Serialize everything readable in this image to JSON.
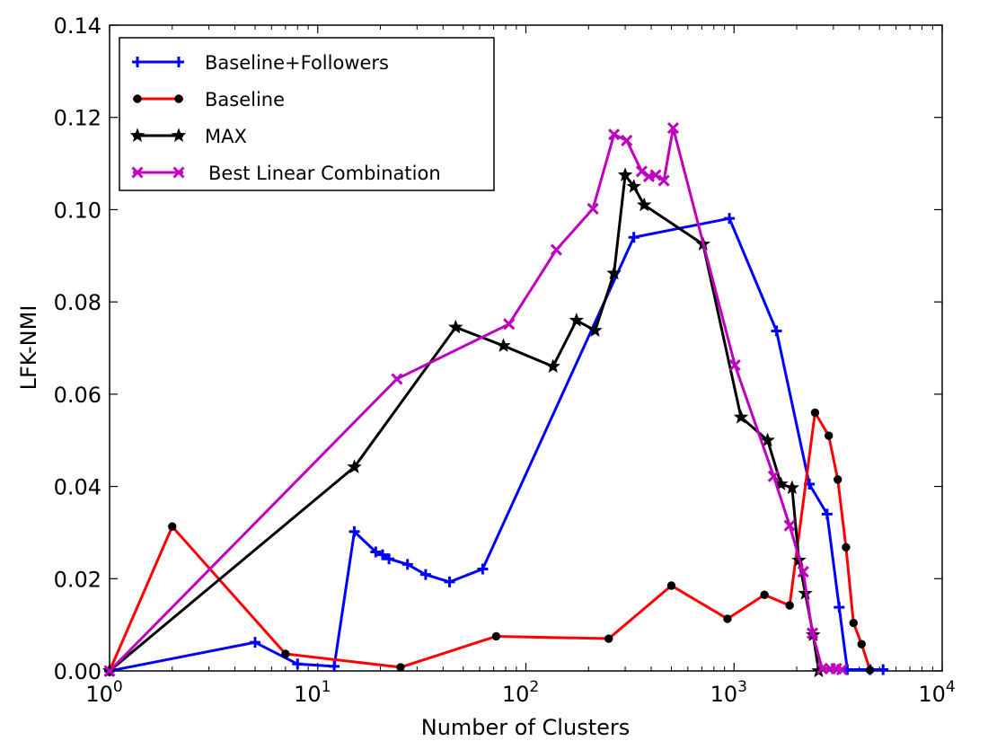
{
  "chart_data": {
    "type": "line",
    "title": "",
    "xlabel": "Number of Clusters",
    "ylabel": "LFK-NMI",
    "xscale": "log",
    "xlim": [
      1,
      10000
    ],
    "ylim": [
      0,
      0.14
    ],
    "x_tick_labels": [
      {
        "value": 1,
        "base": "10",
        "exp": "0"
      },
      {
        "value": 10,
        "base": "10",
        "exp": "1"
      },
      {
        "value": 100,
        "base": "10",
        "exp": "2"
      },
      {
        "value": 1000,
        "base": "10",
        "exp": "3"
      },
      {
        "value": 10000,
        "base": "10",
        "exp": "4"
      }
    ],
    "y_tick_labels": [
      "0.00",
      "0.02",
      "0.04",
      "0.06",
      "0.08",
      "0.10",
      "0.12",
      "0.14"
    ],
    "y_tick_values": [
      0,
      0.02,
      0.04,
      0.06,
      0.08,
      0.1,
      0.12,
      0.14
    ],
    "legend_position": "top-left",
    "series": [
      {
        "name": "Baseline+Followers",
        "color": "#0000ff",
        "marker": "plus",
        "x": [
          1,
          5,
          8,
          12,
          15,
          19,
          20.5,
          22,
          27,
          33,
          43,
          62,
          330,
          950,
          1600,
          2300,
          2800,
          3200,
          3500,
          4500,
          5200
        ],
        "y": [
          0,
          0.0062,
          0.0015,
          0.001,
          0.0302,
          0.0258,
          0.0252,
          0.0243,
          0.0231,
          0.0209,
          0.0193,
          0.0221,
          0.094,
          0.0981,
          0.0737,
          0.0405,
          0.034,
          0.0138,
          0.0003,
          0.0003,
          0.0003
        ]
      },
      {
        "name": "Baseline",
        "color": "#ff0000",
        "marker": "circle",
        "x": [
          1,
          2,
          7,
          25,
          72,
          250,
          500,
          930,
          1400,
          1850,
          2450,
          2850,
          3150,
          3450,
          3750,
          4100,
          4500
        ],
        "y": [
          0,
          0.0313,
          0.0037,
          0.0008,
          0.0075,
          0.007,
          0.0185,
          0.0113,
          0.0165,
          0.0142,
          0.056,
          0.051,
          0.0415,
          0.0268,
          0.0104,
          0.0058,
          0.0002
        ]
      },
      {
        "name": "MAX",
        "color": "#000000",
        "marker": "star",
        "x": [
          1,
          15,
          46,
          78,
          135,
          175,
          215,
          265,
          300,
          330,
          370,
          710,
          1080,
          1450,
          1680,
          1900,
          2050,
          2200,
          2400,
          2550
        ],
        "y": [
          0,
          0.0442,
          0.0745,
          0.0705,
          0.066,
          0.076,
          0.0738,
          0.0862,
          0.1075,
          0.105,
          0.101,
          0.0925,
          0.055,
          0.05,
          0.0405,
          0.0397,
          0.024,
          0.0168,
          0.0078,
          0
        ]
      },
      {
        "name": "Best Linear Combination",
        "color": "#bf00bf",
        "marker": "cross",
        "x": [
          1,
          24,
          83,
          140,
          210,
          265,
          305,
          360,
          390,
          420,
          460,
          510,
          1010,
          1550,
          1850,
          2150,
          2380,
          2650,
          2900,
          3100,
          3300
        ],
        "y": [
          0,
          0.0633,
          0.0752,
          0.0913,
          0.1002,
          0.1163,
          0.115,
          0.1083,
          0.1072,
          0.1075,
          0.1063,
          0.1177,
          0.0663,
          0.0422,
          0.0315,
          0.0215,
          0.0082,
          0.0005,
          0.0005,
          0.0005,
          0.0003
        ]
      }
    ]
  }
}
